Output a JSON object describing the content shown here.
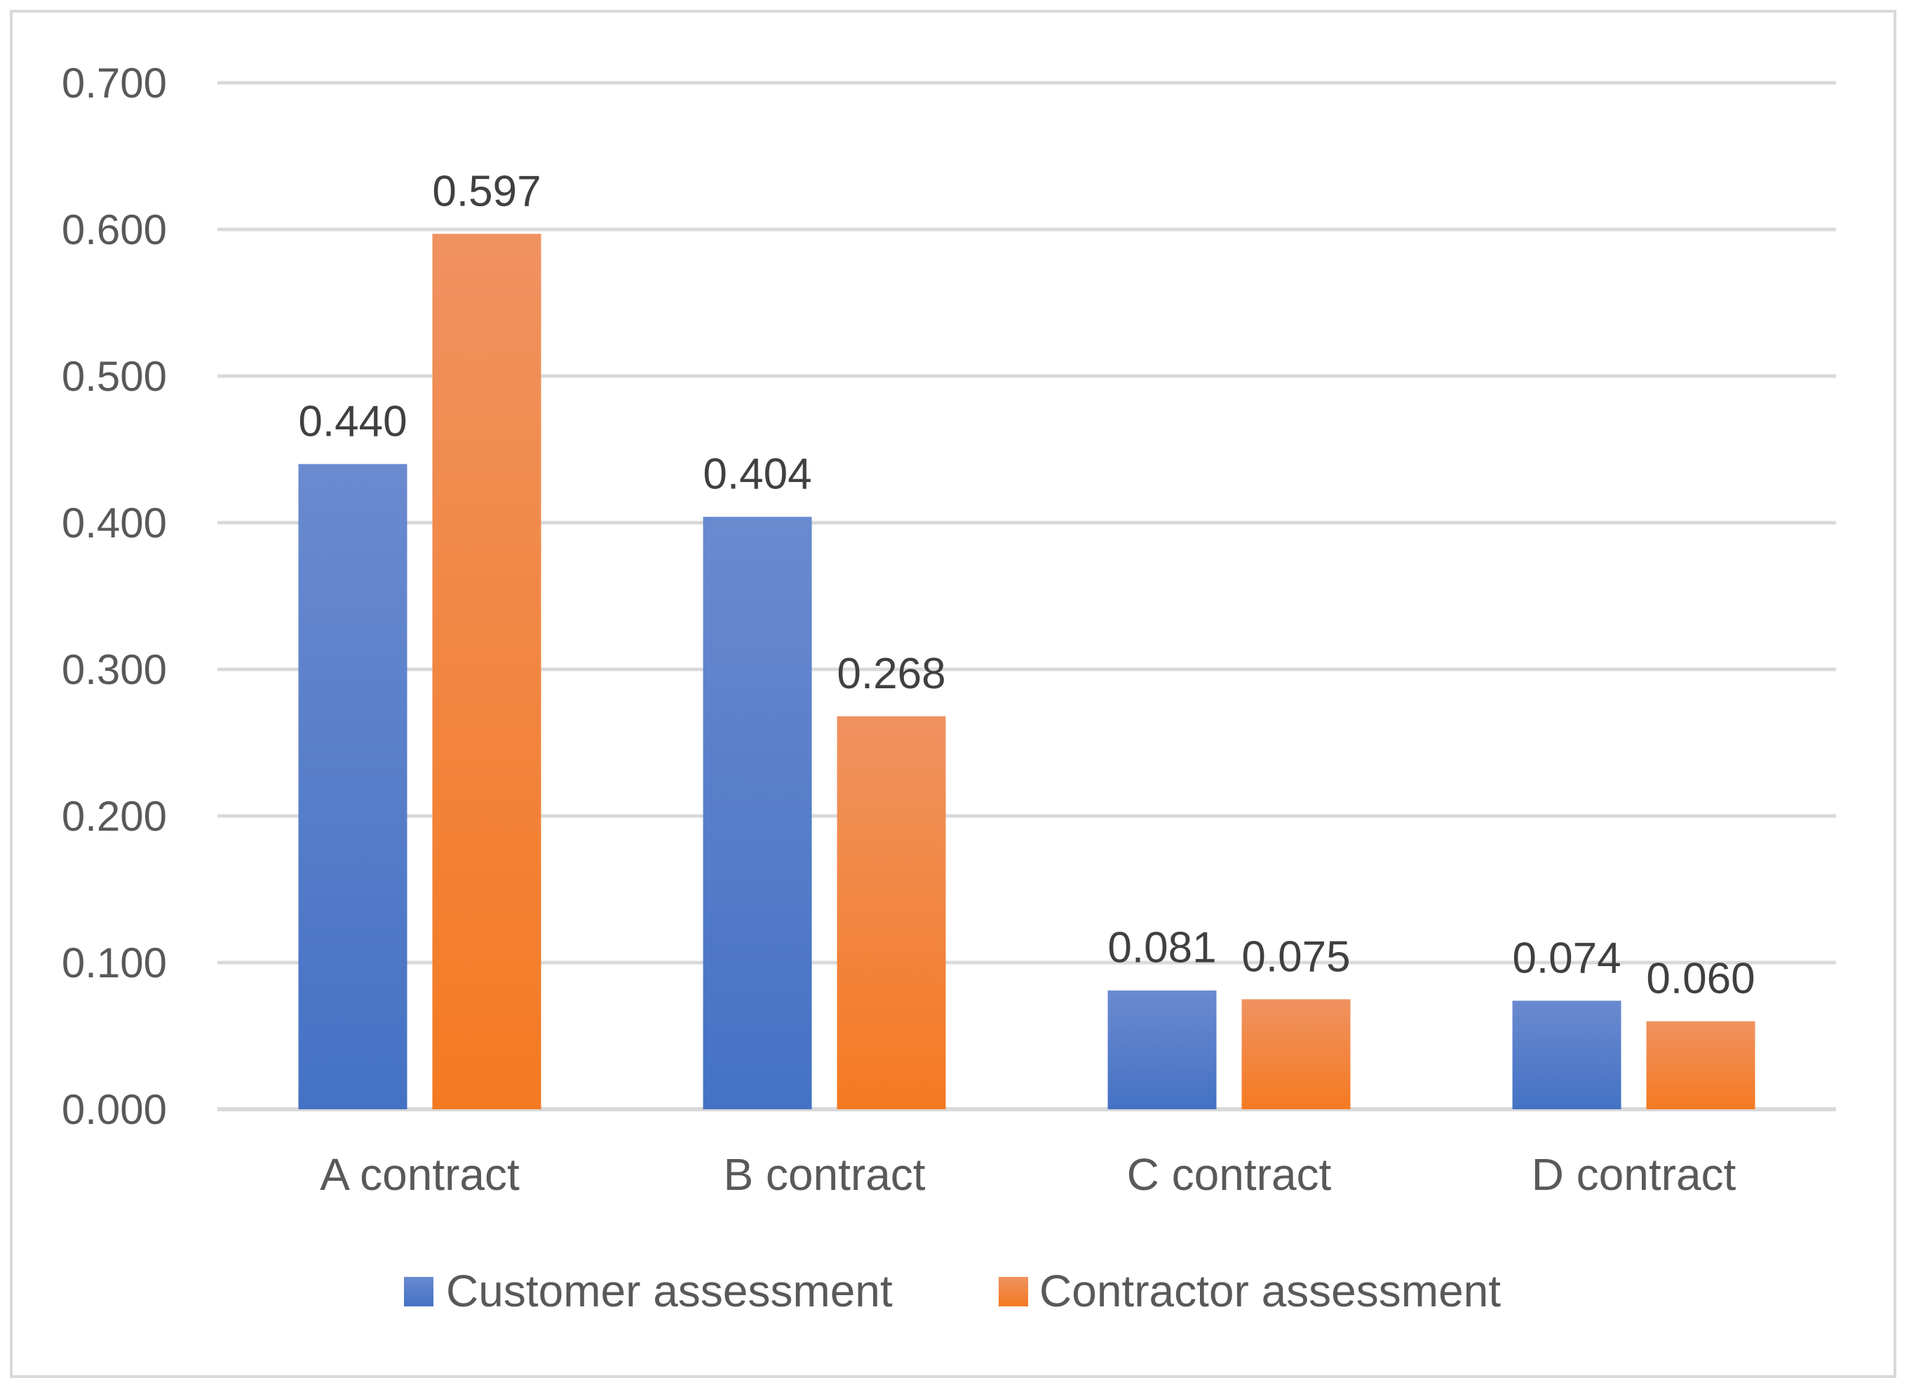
{
  "chart_data": {
    "type": "bar",
    "title": "",
    "xlabel": "",
    "ylabel": "",
    "categories": [
      "A contract",
      "B contract",
      "C contract",
      "D contract"
    ],
    "series": [
      {
        "name": "Customer assessment",
        "values": [
          0.44,
          0.404,
          0.081,
          0.074
        ],
        "labels": [
          "0.440",
          "0.404",
          "0.081",
          "0.074"
        ],
        "color": "#4472c4",
        "color_light": "#6a8ad0"
      },
      {
        "name": "Contractor assessment",
        "values": [
          0.597,
          0.268,
          0.075,
          0.06
        ],
        "labels": [
          "0.597",
          "0.268",
          "0.075",
          "0.060"
        ],
        "color": "#f47a22",
        "color_light": "#f09260"
      }
    ],
    "ylim": [
      0,
      0.7
    ],
    "yticks": [
      0.0,
      0.1,
      0.2,
      0.3,
      0.4,
      0.5,
      0.6,
      0.7
    ],
    "ytick_labels": [
      "0.000",
      "0.100",
      "0.200",
      "0.300",
      "0.400",
      "0.500",
      "0.600",
      "0.700"
    ],
    "grid": true,
    "legend_position": "bottom-center"
  },
  "colors": {
    "grid": "#d9d9d9",
    "border": "#d9d9d9",
    "axis": "#d9d9d9"
  }
}
